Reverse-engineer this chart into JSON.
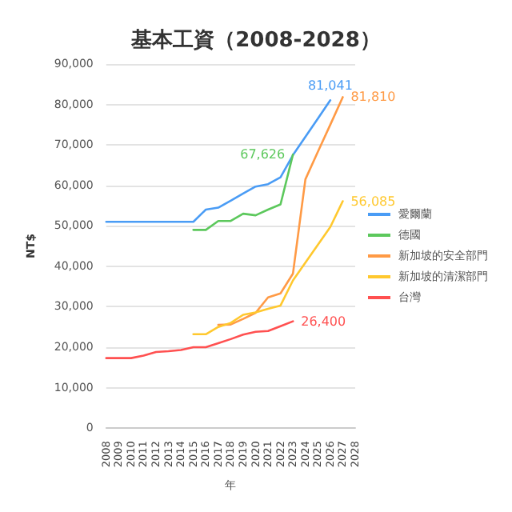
{
  "chart_data": {
    "type": "line",
    "title": "基本工資（2008-2028）",
    "xlabel": "年",
    "ylabel": "NT$",
    "categories": [
      "2008",
      "2009",
      "2010",
      "2011",
      "2012",
      "2013",
      "2014",
      "2015",
      "2016",
      "2017",
      "2018",
      "2019",
      "2020",
      "2021",
      "2022",
      "2023",
      "2024",
      "2025",
      "2026",
      "2027",
      "2028"
    ],
    "ylim": [
      0,
      90000
    ],
    "yticks": [
      {
        "value": 0,
        "label": "0"
      },
      {
        "value": 10000,
        "label": "10,000"
      },
      {
        "value": 20000,
        "label": "20,000"
      },
      {
        "value": 30000,
        "label": "30,000"
      },
      {
        "value": 40000,
        "label": "40,000"
      },
      {
        "value": 50000,
        "label": "50,000"
      },
      {
        "value": 60000,
        "label": "60,000"
      },
      {
        "value": 70000,
        "label": "70,000"
      },
      {
        "value": 80000,
        "label": "80,000"
      },
      {
        "value": 90000,
        "label": "90,000"
      }
    ],
    "grid": "y",
    "legend": "right",
    "marker": "none",
    "line_style": "solid",
    "series": [
      {
        "name": "愛爾蘭",
        "color": "#4a9cf5",
        "values": [
          51000,
          51000,
          51000,
          51000,
          51000,
          51000,
          51000,
          51000,
          54000,
          54500,
          56200,
          58000,
          59700,
          60300,
          62000,
          67500,
          72000,
          76500,
          81041,
          null,
          null
        ],
        "value_labels": [
          null,
          null,
          null,
          null,
          null,
          null,
          null,
          null,
          null,
          null,
          null,
          null,
          null,
          null,
          null,
          null,
          null,
          null,
          "81,041",
          null,
          null
        ]
      },
      {
        "name": "德國",
        "color": "#5cc85c",
        "values": [
          null,
          null,
          null,
          null,
          null,
          null,
          null,
          49000,
          49000,
          51200,
          51200,
          53000,
          52600,
          54000,
          55300,
          67626,
          null,
          null,
          null,
          null,
          null
        ],
        "value_labels": [
          null,
          null,
          null,
          null,
          null,
          null,
          null,
          null,
          null,
          null,
          null,
          null,
          null,
          null,
          null,
          "67,626",
          null,
          null,
          null,
          null,
          null
        ]
      },
      {
        "name": "新加坡的安全部門",
        "color": "#ff9a45",
        "values": [
          null,
          null,
          null,
          null,
          null,
          null,
          null,
          null,
          null,
          25500,
          25600,
          27000,
          28500,
          32300,
          33300,
          38200,
          61500,
          68300,
          75000,
          81810,
          null
        ],
        "value_labels": [
          null,
          null,
          null,
          null,
          null,
          null,
          null,
          null,
          null,
          null,
          null,
          null,
          null,
          null,
          null,
          null,
          null,
          null,
          null,
          "81,810",
          null
        ]
      },
      {
        "name": "新加坡的清潔部門",
        "color": "#ffc82e",
        "values": [
          null,
          null,
          null,
          null,
          null,
          null,
          null,
          23200,
          23200,
          25000,
          26000,
          28000,
          28600,
          29500,
          30300,
          36500,
          40900,
          45300,
          49700,
          56085,
          null
        ],
        "value_labels": [
          null,
          null,
          null,
          null,
          null,
          null,
          null,
          null,
          null,
          null,
          null,
          null,
          null,
          null,
          null,
          null,
          null,
          null,
          null,
          "56,085",
          null
        ]
      },
      {
        "name": "台灣",
        "color": "#ff5050",
        "values": [
          17300,
          17300,
          17300,
          17900,
          18800,
          19000,
          19300,
          20000,
          20000,
          21000,
          22000,
          23100,
          23800,
          24000,
          25200,
          26400,
          null,
          null,
          null,
          null,
          null
        ],
        "value_labels": [
          null,
          null,
          null,
          null,
          null,
          null,
          null,
          null,
          null,
          null,
          null,
          null,
          null,
          null,
          null,
          "26,400",
          null,
          null,
          null,
          null,
          null
        ]
      }
    ]
  }
}
